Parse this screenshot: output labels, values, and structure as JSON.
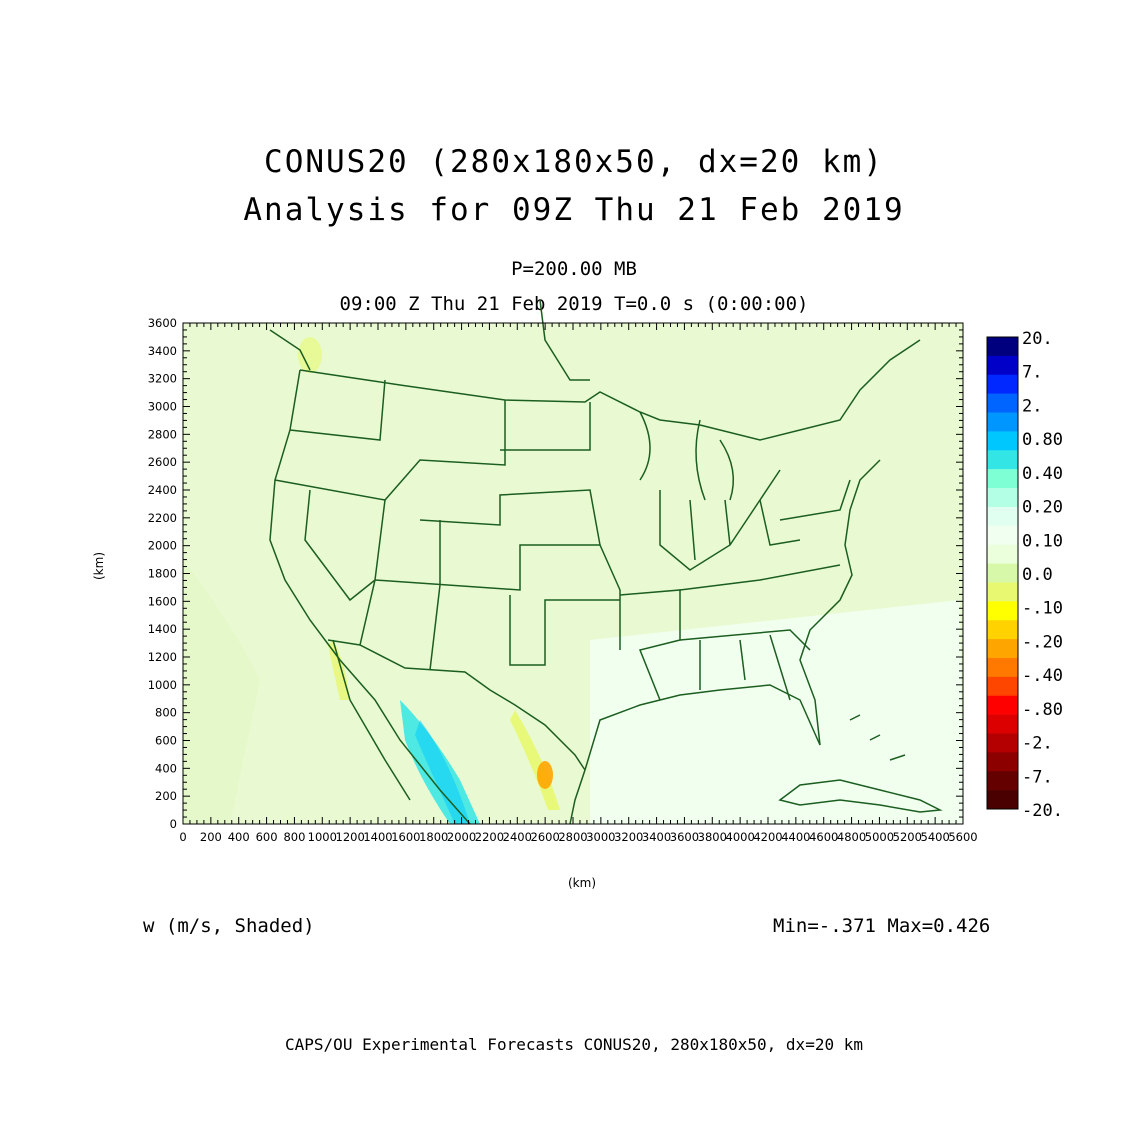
{
  "title_line1": "CONUS20 (280x180x50, dx=20 km)",
  "title_line2": "Analysis for 09Z Thu 21 Feb 2019",
  "level": "P=200.00 MB",
  "time_line": "09:00 Z Thu 21 Feb 2019    T=0.0 s (0:00:00)",
  "x_axis": {
    "label": "(km)",
    "range": [
      0,
      5600
    ],
    "ticks": [
      "0",
      "200",
      "400",
      "600",
      "800",
      "1000",
      "1200",
      "1400",
      "1600",
      "1800",
      "2000",
      "2200",
      "2400",
      "2600",
      "2800",
      "3000",
      "3200",
      "3400",
      "3600",
      "3800",
      "4000",
      "4200",
      "4400",
      "4600",
      "4800",
      "5000",
      "5200",
      "5400",
      "5600"
    ]
  },
  "y_axis": {
    "label": "(km)",
    "range": [
      0,
      3600
    ],
    "ticks": [
      "0",
      "200",
      "400",
      "600",
      "800",
      "1000",
      "1200",
      "1400",
      "1600",
      "1800",
      "2000",
      "2200",
      "2400",
      "2600",
      "2800",
      "3000",
      "3200",
      "3400",
      "3600"
    ]
  },
  "colorbar": {
    "labels": [
      "20.",
      "7.",
      "2.",
      "0.80",
      "0.40",
      "0.20",
      "0.10",
      "0.0",
      "-.10",
      "-.20",
      "-.40",
      "-.80",
      "-2.",
      "-7.",
      "-20."
    ],
    "colors": [
      "#00007f",
      "#0000c8",
      "#0028ff",
      "#0064ff",
      "#0096ff",
      "#00c8ff",
      "#33e5e5",
      "#7fffd4",
      "#b3ffe6",
      "#e0fff0",
      "#f0fff0",
      "#ecffdc",
      "#d6f8a8",
      "#e8f870",
      "#ffff00",
      "#ffd200",
      "#ffa500",
      "#ff7800",
      "#ff4600",
      "#ff0000",
      "#dc0000",
      "#b40000",
      "#8c0000",
      "#640000",
      "#4b0000"
    ]
  },
  "field_label": "w (m/s, Shaded)",
  "minmax": "Min=-.371  Max=0.426",
  "footer": "CAPS/OU Experimental Forecasts  CONUS20, 280x180x50, dx=20 km",
  "map_colors": {
    "background": "#e9fad2",
    "boundaries": "#1b5e20"
  }
}
